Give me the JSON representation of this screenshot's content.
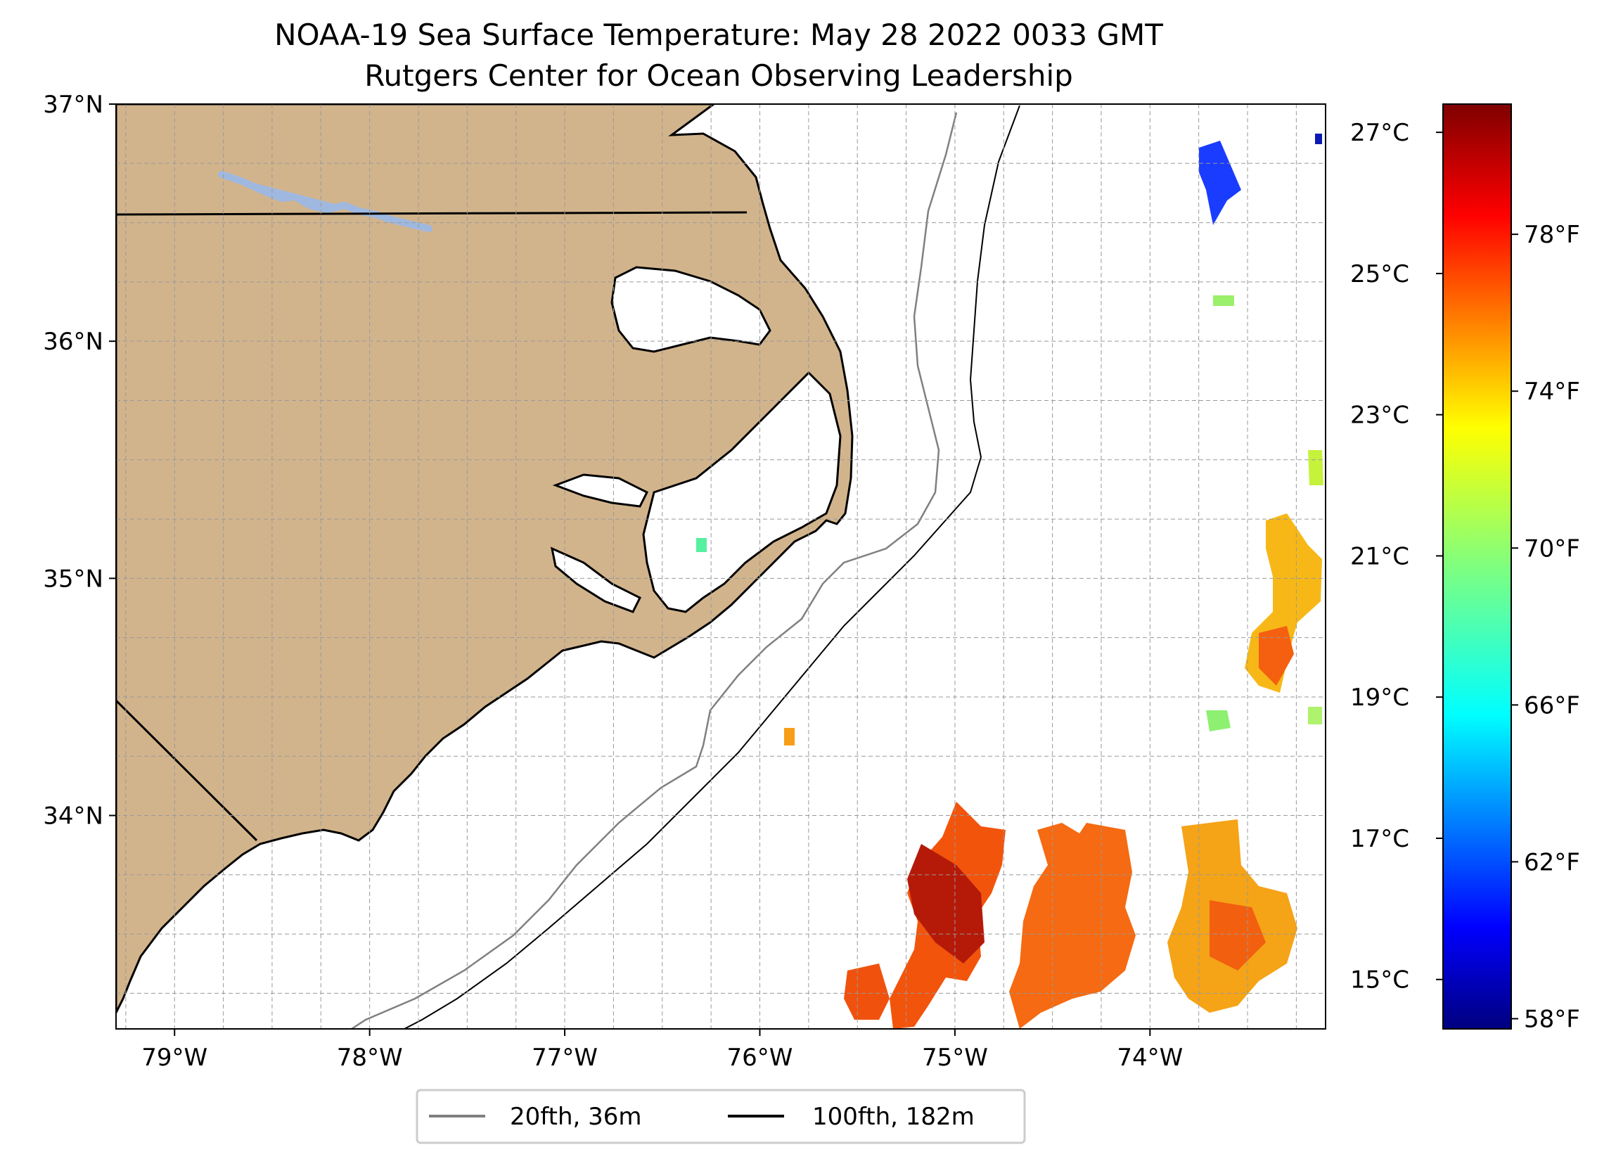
{
  "title": {
    "line1": "NOAA-19 Sea Surface Temperature: May 28 2022 0033 GMT",
    "line2": "Rutgers Center for Ocean Observing Leadership"
  },
  "map": {
    "lon_range": [
      -79.3,
      -73.1
    ],
    "lat_range": [
      33.1,
      37.0
    ],
    "land_color": "#d2b48c",
    "water_body_color": "#9fb8e0",
    "lat_ticks": [
      {
        "value": 37,
        "label": "37°N"
      },
      {
        "value": 36,
        "label": "36°N"
      },
      {
        "value": 35,
        "label": "35°N"
      },
      {
        "value": 34,
        "label": "34°N"
      }
    ],
    "lon_ticks": [
      {
        "value": -79,
        "label": "79°W"
      },
      {
        "value": -78,
        "label": "78°W"
      },
      {
        "value": -77,
        "label": "77°W"
      },
      {
        "value": -76,
        "label": "76°W"
      },
      {
        "value": -75,
        "label": "75°W"
      },
      {
        "value": -74,
        "label": "74°W"
      }
    ],
    "grid": true
  },
  "colorbar": {
    "colormap": "jet",
    "range_c": [
      14.3,
      27.4
    ],
    "celsius_ticks": [
      {
        "value": 27,
        "label": "27°C"
      },
      {
        "value": 25,
        "label": "25°C"
      },
      {
        "value": 23,
        "label": "23°C"
      },
      {
        "value": 21,
        "label": "21°C"
      },
      {
        "value": 19,
        "label": "19°C"
      },
      {
        "value": 17,
        "label": "17°C"
      },
      {
        "value": 15,
        "label": "15°C"
      }
    ],
    "fahrenheit_ticks": [
      {
        "value": 78,
        "label": "78°F"
      },
      {
        "value": 74,
        "label": "74°F"
      },
      {
        "value": 70,
        "label": "70°F"
      },
      {
        "value": 66,
        "label": "66°F"
      },
      {
        "value": 62,
        "label": "62°F"
      },
      {
        "value": 58,
        "label": "58°F"
      }
    ]
  },
  "legend": {
    "placement": "bottom-center",
    "items": [
      {
        "label": "20fth, 36m",
        "color": "#808080"
      },
      {
        "label": "100fth, 182m",
        "color": "#000000"
      }
    ]
  }
}
